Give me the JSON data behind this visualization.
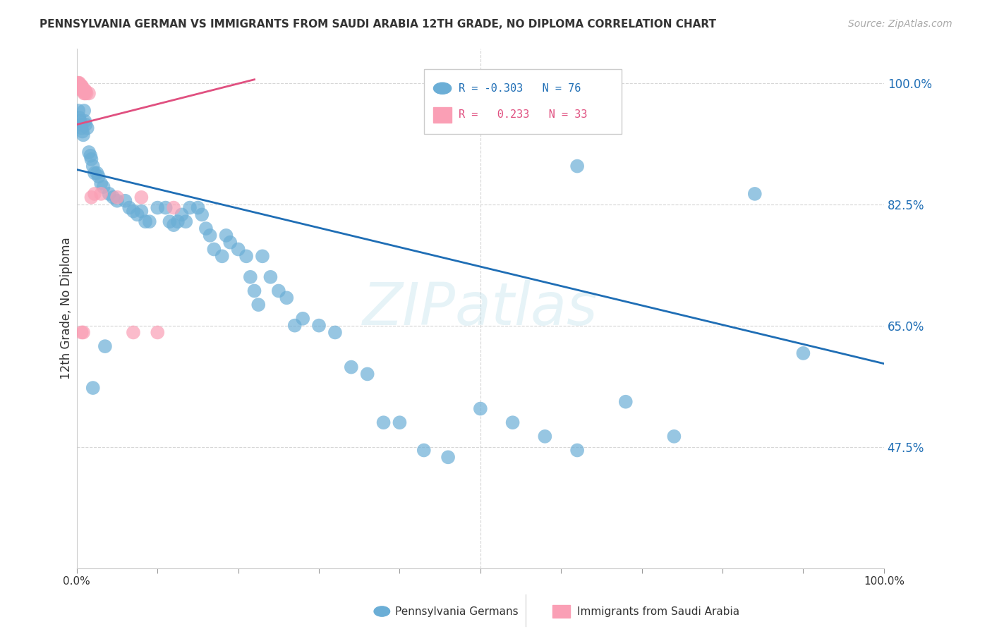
{
  "title": "PENNSYLVANIA GERMAN VS IMMIGRANTS FROM SAUDI ARABIA 12TH GRADE, NO DIPLOMA CORRELATION CHART",
  "source": "Source: ZipAtlas.com",
  "ylabel": "12th Grade, No Diploma",
  "xlim": [
    0.0,
    1.0
  ],
  "ylim": [
    0.3,
    1.05
  ],
  "blue_color": "#6baed6",
  "pink_color": "#fa9fb5",
  "line_blue": "#1f6eb5",
  "line_pink": "#e05080",
  "watermark": "ZIPatlas",
  "blue_x": [
    0.002,
    0.003,
    0.004,
    0.005,
    0.006,
    0.007,
    0.008,
    0.009,
    0.01,
    0.011,
    0.013,
    0.015,
    0.017,
    0.018,
    0.02,
    0.022,
    0.025,
    0.027,
    0.03,
    0.033,
    0.04,
    0.045,
    0.05,
    0.06,
    0.065,
    0.07,
    0.075,
    0.08,
    0.085,
    0.09,
    0.1,
    0.11,
    0.115,
    0.12,
    0.125,
    0.13,
    0.135,
    0.14,
    0.15,
    0.155,
    0.16,
    0.165,
    0.17,
    0.18,
    0.185,
    0.19,
    0.2,
    0.21,
    0.215,
    0.22,
    0.225,
    0.23,
    0.24,
    0.25,
    0.26,
    0.27,
    0.28,
    0.3,
    0.32,
    0.34,
    0.36,
    0.38,
    0.4,
    0.43,
    0.46,
    0.5,
    0.54,
    0.58,
    0.62,
    0.68,
    0.74,
    0.84,
    0.9,
    0.62,
    0.02,
    0.035
  ],
  "blue_y": [
    0.96,
    0.95,
    0.945,
    0.94,
    0.935,
    0.93,
    0.925,
    0.96,
    0.945,
    0.94,
    0.935,
    0.9,
    0.895,
    0.89,
    0.88,
    0.87,
    0.87,
    0.865,
    0.855,
    0.85,
    0.84,
    0.835,
    0.83,
    0.83,
    0.82,
    0.815,
    0.81,
    0.815,
    0.8,
    0.8,
    0.82,
    0.82,
    0.8,
    0.795,
    0.8,
    0.81,
    0.8,
    0.82,
    0.82,
    0.81,
    0.79,
    0.78,
    0.76,
    0.75,
    0.78,
    0.77,
    0.76,
    0.75,
    0.72,
    0.7,
    0.68,
    0.75,
    0.72,
    0.7,
    0.69,
    0.65,
    0.66,
    0.65,
    0.64,
    0.59,
    0.58,
    0.51,
    0.51,
    0.47,
    0.46,
    0.53,
    0.51,
    0.49,
    0.47,
    0.54,
    0.49,
    0.84,
    0.61,
    0.88,
    0.56,
    0.62
  ],
  "pink_x": [
    0.001,
    0.002,
    0.002,
    0.003,
    0.003,
    0.004,
    0.005,
    0.006,
    0.006,
    0.007,
    0.008,
    0.009,
    0.01,
    0.011,
    0.012,
    0.015,
    0.018,
    0.022,
    0.03,
    0.05,
    0.07,
    0.08,
    0.1,
    0.12,
    0.002,
    0.003,
    0.004,
    0.005,
    0.007,
    0.009,
    0.006,
    0.008,
    0.01
  ],
  "pink_y": [
    1.0,
    1.0,
    0.998,
    1.0,
    0.998,
    0.997,
    0.996,
    0.996,
    0.995,
    0.99,
    0.988,
    0.985,
    0.99,
    0.988,
    0.985,
    0.985,
    0.835,
    0.84,
    0.84,
    0.835,
    0.64,
    0.835,
    0.64,
    0.82,
    0.995,
    0.993,
    0.991,
    0.994,
    0.992,
    0.988,
    0.64,
    0.64,
    0.985
  ],
  "blue_line_x": [
    0.0,
    1.0
  ],
  "blue_line_y": [
    0.875,
    0.595
  ],
  "pink_line_x": [
    0.0,
    0.22
  ],
  "pink_line_y": [
    0.94,
    1.005
  ],
  "hgrid_vals": [
    0.475,
    0.65,
    0.825,
    1.0
  ],
  "right_ytick_labels": [
    "47.5%",
    "65.0%",
    "82.5%",
    "100.0%"
  ],
  "legend_text1": "R = -0.303   N = 76",
  "legend_text2": "R =   0.233   N = 33",
  "bottom_label1": "Pennsylvania Germans",
  "bottom_label2": "Immigrants from Saudi Arabia"
}
